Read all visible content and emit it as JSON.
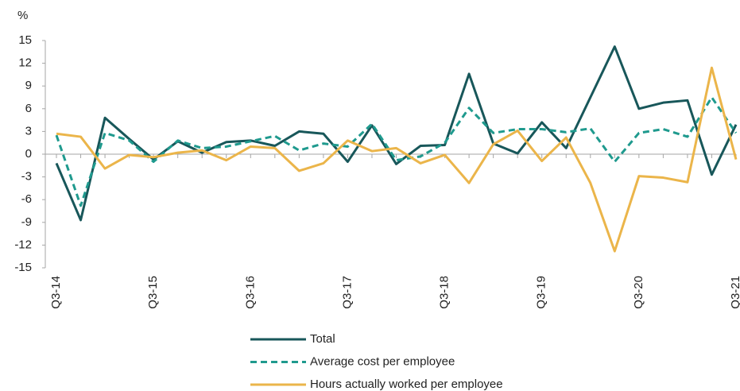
{
  "chart_data": {
    "type": "line",
    "y_label": "%",
    "categories": [
      "Q3-14",
      null,
      null,
      null,
      "Q3-15",
      null,
      null,
      null,
      "Q3-16",
      null,
      null,
      null,
      "Q3-17",
      null,
      null,
      null,
      "Q3-18",
      null,
      null,
      null,
      "Q3-19",
      null,
      null,
      null,
      "Q3-20",
      null,
      null,
      null,
      "Q3-21"
    ],
    "series": [
      {
        "name": "Total",
        "color": "#18575a",
        "dashed": false,
        "values": [
          -1.2,
          -8.7,
          4.8,
          2.0,
          -0.7,
          1.7,
          0.2,
          1.6,
          1.8,
          1.1,
          3.0,
          2.7,
          -1.0,
          3.8,
          -1.3,
          1.1,
          1.2,
          10.6,
          1.4,
          0.1,
          4.2,
          0.8,
          7.5,
          14.2,
          6.0,
          6.8,
          7.1,
          -2.7,
          3.9
        ]
      },
      {
        "name": "Average cost per employee",
        "color": "#1f9a8e",
        "dashed": true,
        "values": [
          2.5,
          -6.8,
          2.8,
          1.8,
          -1.0,
          1.8,
          0.8,
          1.0,
          1.7,
          2.4,
          0.5,
          1.4,
          1.0,
          4.0,
          -0.8,
          -0.3,
          1.5,
          6.1,
          2.8,
          3.3,
          3.3,
          2.9,
          3.4,
          -1.0,
          2.8,
          3.3,
          2.3,
          7.5,
          2.8
        ]
      },
      {
        "name": "Hours actually worked per employee",
        "color": "#ebb54a",
        "dashed": false,
        "values": [
          2.7,
          2.3,
          -1.9,
          -0.1,
          -0.4,
          0.2,
          0.5,
          -0.8,
          1.0,
          0.8,
          -2.2,
          -1.2,
          1.8,
          0.4,
          0.8,
          -1.2,
          -0.1,
          -3.8,
          1.3,
          3.1,
          -0.9,
          2.2,
          -3.8,
          -12.8,
          -2.9,
          -3.1,
          -3.7,
          11.4,
          -0.7
        ]
      }
    ],
    "ylim": [
      -15,
      15
    ],
    "yticks": [
      -15,
      -12,
      -9,
      -6,
      -3,
      0,
      3,
      6,
      9,
      12,
      15
    ],
    "grid": false
  }
}
